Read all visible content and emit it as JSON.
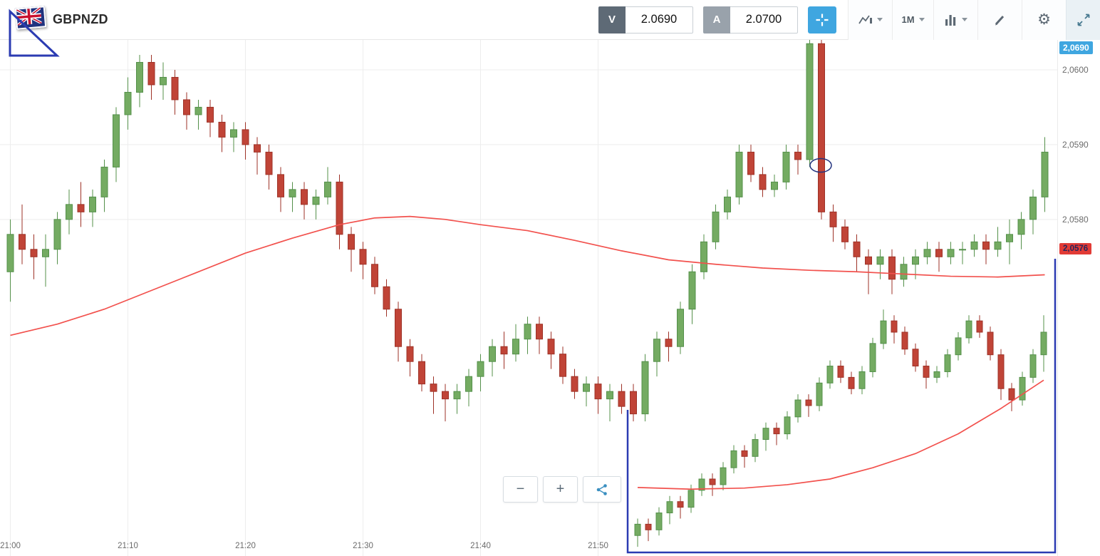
{
  "header": {
    "symbol": "GBPNZD",
    "sell_label": "V",
    "sell_value": "2.0690",
    "buy_label": "A",
    "buy_value": "2.0700",
    "timeframe": "1M"
  },
  "icons": {
    "gear": "⚙"
  },
  "zoom_controls": {
    "minus": "−",
    "plus": "+"
  },
  "annotations": [
    {
      "type": "triangle-drawing",
      "color": "#2b3bb2"
    },
    {
      "type": "ellipse-drawing",
      "color": "#23337f"
    },
    {
      "type": "zoom-inset-frame",
      "color": "#2b3bb2"
    }
  ],
  "chart_data": {
    "type": "candlestick",
    "symbol": "GBPNZD",
    "interval": "1M",
    "price_base": 2.0,
    "price_unit": 0.0001,
    "legend_position": "none",
    "grid": true,
    "colors": {
      "up": "#74ab62",
      "up_border": "#54904a",
      "down": "#c04437",
      "down_border": "#9e3227",
      "ma": "#f2514d",
      "grid": "#ededed",
      "axis_text": "#6b6b6b"
    },
    "price_markers": {
      "top_badge": {
        "label": "2,0690",
        "color": "#3fa6e0"
      },
      "last_badge": {
        "label": "2,0576",
        "pip": 576,
        "color": "#e23b36"
      }
    },
    "main": {
      "ylim_pips": [
        535,
        604
      ],
      "price_gridlines": [
        {
          "pip": 600,
          "label": "2,0600"
        },
        {
          "pip": 590,
          "label": "2,0590"
        },
        {
          "pip": 580,
          "label": "2,0580"
        }
      ],
      "time_gridlines": [
        {
          "index": 0,
          "label": "21:00"
        },
        {
          "index": 10,
          "label": "21:10"
        },
        {
          "index": 20,
          "label": "21:20"
        },
        {
          "index": 30,
          "label": "21:30"
        },
        {
          "index": 40,
          "label": "21:40"
        },
        {
          "index": 50,
          "label": "21:50"
        }
      ],
      "ohlc_pips": [
        [
          573,
          580,
          569,
          578
        ],
        [
          578,
          582,
          574,
          576
        ],
        [
          576,
          578,
          572,
          575
        ],
        [
          575,
          578,
          571,
          576
        ],
        [
          576,
          581,
          574,
          580
        ],
        [
          580,
          584,
          578,
          582
        ],
        [
          582,
          585,
          579,
          581
        ],
        [
          581,
          584,
          579,
          583
        ],
        [
          583,
          588,
          581,
          587
        ],
        [
          587,
          595,
          585,
          594
        ],
        [
          594,
          599,
          592,
          597
        ],
        [
          597,
          602,
          595,
          601
        ],
        [
          601,
          602,
          596,
          598
        ],
        [
          598,
          601,
          596,
          599
        ],
        [
          599,
          600,
          594,
          596
        ],
        [
          596,
          597,
          592,
          594
        ],
        [
          594,
          596,
          592,
          595
        ],
        [
          595,
          596,
          591,
          593
        ],
        [
          593,
          594,
          589,
          591
        ],
        [
          591,
          593,
          589,
          592
        ],
        [
          592,
          593,
          588,
          590
        ],
        [
          590,
          591,
          586,
          589
        ],
        [
          589,
          590,
          584,
          586
        ],
        [
          586,
          587,
          581,
          583
        ],
        [
          583,
          585,
          581,
          584
        ],
        [
          584,
          585,
          580,
          582
        ],
        [
          582,
          584,
          580,
          583
        ],
        [
          583,
          587,
          582,
          585
        ],
        [
          585,
          586,
          576,
          578
        ],
        [
          578,
          579,
          573,
          576
        ],
        [
          576,
          577,
          572,
          574
        ],
        [
          574,
          575,
          570,
          571
        ],
        [
          571,
          572,
          567,
          568
        ],
        [
          568,
          569,
          561,
          563
        ],
        [
          563,
          564,
          559,
          561
        ],
        [
          561,
          562,
          557,
          558
        ],
        [
          558,
          559,
          554,
          557
        ],
        [
          557,
          558,
          553,
          556
        ],
        [
          556,
          558,
          554,
          557
        ],
        [
          557,
          560,
          555,
          559
        ],
        [
          559,
          562,
          557,
          561
        ],
        [
          561,
          564,
          559,
          563
        ],
        [
          563,
          565,
          560,
          562
        ],
        [
          562,
          566,
          561,
          564
        ],
        [
          564,
          567,
          562,
          566
        ],
        [
          566,
          567,
          562,
          564
        ],
        [
          564,
          565,
          560,
          562
        ],
        [
          562,
          563,
          558,
          559
        ],
        [
          559,
          560,
          556,
          557
        ],
        [
          557,
          559,
          555,
          558
        ],
        [
          558,
          559,
          554,
          556
        ],
        [
          556,
          558,
          553,
          557
        ],
        [
          557,
          558,
          554,
          555
        ],
        [
          557,
          558,
          553,
          554
        ],
        [
          554,
          562,
          553,
          561
        ],
        [
          561,
          565,
          559,
          564
        ],
        [
          564,
          565,
          561,
          563
        ],
        [
          563,
          569,
          562,
          568
        ],
        [
          568,
          574,
          566,
          573
        ],
        [
          573,
          578,
          572,
          577
        ],
        [
          577,
          582,
          576,
          581
        ],
        [
          581,
          584,
          580,
          583
        ],
        [
          583,
          590,
          582,
          589
        ],
        [
          589,
          590,
          585,
          586
        ],
        [
          586,
          587,
          583,
          584
        ],
        [
          584,
          586,
          583,
          585
        ],
        [
          585,
          590,
          584,
          589
        ],
        [
          589,
          590,
          586,
          588
        ],
        [
          588,
          605,
          587,
          603.5
        ],
        [
          603.5,
          604.5,
          580,
          581
        ],
        [
          581,
          582,
          577,
          579
        ],
        [
          579,
          580,
          576,
          577
        ],
        [
          577,
          578,
          573,
          575
        ],
        [
          575,
          576,
          570,
          574
        ],
        [
          574,
          576,
          572,
          575
        ],
        [
          575,
          576,
          570,
          572
        ],
        [
          572,
          575,
          571,
          574
        ],
        [
          574,
          576,
          572,
          575
        ],
        [
          575,
          577,
          574,
          576
        ],
        [
          576,
          577,
          573,
          575
        ],
        [
          575,
          577,
          574,
          576
        ],
        [
          576,
          577,
          574,
          576
        ],
        [
          576,
          578,
          575,
          577
        ],
        [
          577,
          578,
          574,
          576
        ],
        [
          576,
          579,
          575,
          577
        ],
        [
          577,
          580,
          574,
          578
        ],
        [
          578,
          581,
          576,
          580
        ],
        [
          580,
          584,
          578,
          583
        ],
        [
          583,
          591,
          581,
          589
        ]
      ],
      "ma_pips": [
        [
          0,
          564.5
        ],
        [
          4,
          566
        ],
        [
          8,
          568
        ],
        [
          12,
          570.5
        ],
        [
          16,
          573
        ],
        [
          20,
          575.5
        ],
        [
          24,
          577.5
        ],
        [
          28,
          579.3
        ],
        [
          31,
          580.2
        ],
        [
          34,
          580.4
        ],
        [
          37,
          580
        ],
        [
          40,
          579.3
        ],
        [
          44,
          578.5
        ],
        [
          48,
          577.2
        ],
        [
          52,
          575.8
        ],
        [
          56,
          574.6
        ],
        [
          60,
          574
        ],
        [
          64,
          573.5
        ],
        [
          68,
          573.2
        ],
        [
          72,
          573
        ],
        [
          76,
          572.7
        ],
        [
          80,
          572.4
        ],
        [
          84,
          572.3
        ],
        [
          88,
          572.6
        ]
      ]
    },
    "inset": {
      "description": "magnified zoom window, no axis labels",
      "ylim_pips": [
        544,
        596
      ],
      "ohlc_pips": [
        [
          547,
          550,
          545,
          549
        ],
        [
          549,
          550,
          546,
          548
        ],
        [
          548,
          552,
          547,
          551
        ],
        [
          551,
          554,
          549,
          553
        ],
        [
          553,
          554,
          550,
          552
        ],
        [
          552,
          556,
          551,
          555
        ],
        [
          555,
          558,
          554,
          557
        ],
        [
          557,
          558,
          554,
          556
        ],
        [
          556,
          560,
          555,
          559
        ],
        [
          559,
          563,
          558,
          562
        ],
        [
          562,
          563,
          559,
          561
        ],
        [
          561,
          565,
          560,
          564
        ],
        [
          564,
          567,
          562,
          566
        ],
        [
          566,
          567,
          563,
          565
        ],
        [
          565,
          569,
          564,
          568
        ],
        [
          568,
          572,
          567,
          571
        ],
        [
          571,
          572,
          568,
          570
        ],
        [
          570,
          575,
          569,
          574
        ],
        [
          574,
          578,
          573,
          577
        ],
        [
          577,
          578,
          574,
          575
        ],
        [
          575,
          576,
          572,
          573
        ],
        [
          573,
          577,
          572,
          576
        ],
        [
          576,
          582,
          575,
          581
        ],
        [
          581,
          587,
          580,
          585
        ],
        [
          585,
          586,
          581,
          583
        ],
        [
          583,
          584,
          579,
          580
        ],
        [
          580,
          581,
          576,
          577
        ],
        [
          577,
          578,
          573,
          575
        ],
        [
          575,
          577,
          574,
          576
        ],
        [
          576,
          580,
          575,
          579
        ],
        [
          579,
          583,
          578,
          582
        ],
        [
          582,
          586,
          581,
          585
        ],
        [
          585,
          586,
          582,
          583
        ],
        [
          583,
          584,
          578,
          579
        ],
        [
          579,
          580,
          571,
          573
        ],
        [
          573,
          574,
          569,
          571
        ],
        [
          571,
          576,
          570,
          575
        ],
        [
          575,
          580,
          574,
          579
        ],
        [
          579,
          586,
          576,
          583
        ]
      ],
      "ma_pips": [
        [
          0,
          555.5
        ],
        [
          5,
          555.2
        ],
        [
          10,
          555.4
        ],
        [
          14,
          556
        ],
        [
          18,
          557
        ],
        [
          22,
          559
        ],
        [
          26,
          561.5
        ],
        [
          30,
          565
        ],
        [
          34,
          569.5
        ],
        [
          38,
          574.5
        ]
      ]
    }
  }
}
